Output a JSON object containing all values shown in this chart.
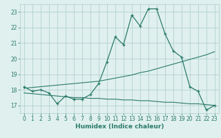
{
  "xlabel": "Humidex (Indice chaleur)",
  "x_values": [
    0,
    1,
    2,
    3,
    4,
    5,
    6,
    7,
    8,
    9,
    10,
    11,
    12,
    13,
    14,
    15,
    16,
    17,
    18,
    19,
    20,
    21,
    22,
    23
  ],
  "line1_y": [
    18.2,
    17.9,
    18.0,
    17.8,
    17.1,
    17.6,
    17.4,
    17.4,
    17.7,
    18.4,
    19.8,
    21.4,
    20.9,
    22.8,
    22.1,
    23.2,
    23.2,
    21.6,
    20.5,
    20.1,
    18.2,
    17.9,
    16.7,
    17.0
  ],
  "line2_y": [
    18.1,
    18.15,
    18.2,
    18.25,
    18.3,
    18.35,
    18.4,
    18.45,
    18.5,
    18.55,
    18.65,
    18.75,
    18.85,
    18.95,
    19.1,
    19.2,
    19.35,
    19.5,
    19.65,
    19.8,
    19.95,
    20.1,
    20.25,
    20.45
  ],
  "line3_y": [
    17.8,
    17.75,
    17.7,
    17.65,
    17.6,
    17.55,
    17.5,
    17.5,
    17.45,
    17.45,
    17.4,
    17.4,
    17.35,
    17.35,
    17.3,
    17.3,
    17.25,
    17.2,
    17.2,
    17.15,
    17.1,
    17.1,
    17.05,
    17.0
  ],
  "line_color": "#2a7a6a",
  "bg_color": "#dff0ee",
  "grid_color": "#aaccca",
  "ylim": [
    16.5,
    23.5
  ],
  "xlim": [
    -0.5,
    23.5
  ],
  "yticks": [
    17,
    18,
    19,
    20,
    21,
    22,
    23
  ],
  "xticks": [
    0,
    1,
    2,
    3,
    4,
    5,
    6,
    7,
    8,
    9,
    10,
    11,
    12,
    13,
    14,
    15,
    16,
    17,
    18,
    19,
    20,
    21,
    22,
    23
  ]
}
